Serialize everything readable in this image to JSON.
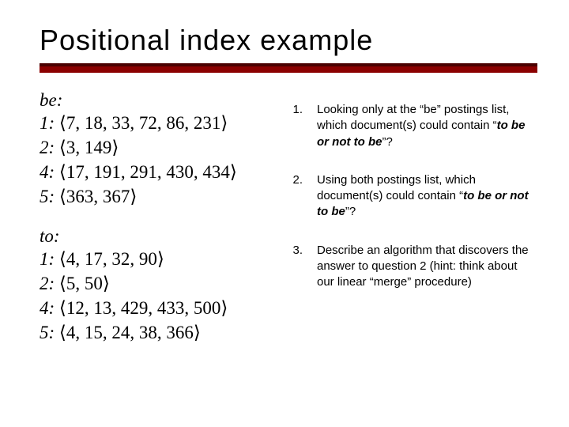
{
  "title": "Positional index example",
  "rule_color_top": "#4a0000",
  "rule_color_bottom": "#8b0000",
  "left": {
    "block1": {
      "term": "be",
      "p1": {
        "doc": "1",
        "list": "7, 18, 33, 72, 86, 231"
      },
      "p2": {
        "doc": "2",
        "list": "3, 149"
      },
      "p3": {
        "doc": "4",
        "list": "17, 191, 291, 430, 434"
      },
      "p4": {
        "doc": "5",
        "list": "363, 367"
      }
    },
    "block2": {
      "term": "to",
      "p1": {
        "doc": "1",
        "list": "4, 17, 32, 90"
      },
      "p2": {
        "doc": "2",
        "list": "5, 50"
      },
      "p3": {
        "doc": "4",
        "list": "12, 13, 429, 433, 500"
      },
      "p4": {
        "doc": "5",
        "list": "4, 15, 24, 38, 366"
      }
    }
  },
  "questions": {
    "q1": {
      "num": "1.",
      "pre": "Looking only at the “be” postings list, which document(s) could contain “",
      "phrase": "to be or not to be",
      "post": "”?"
    },
    "q2": {
      "num": "2.",
      "pre": "Using both postings list, which document(s) could contain “",
      "phrase": "to be or not to be",
      "post": "”?"
    },
    "q3": {
      "num": "3.",
      "text": "Describe an algorithm that discovers the answer to question 2 (hint: think about our linear “merge” procedure)"
    }
  },
  "angles": {
    "l": "⟨",
    "r": "⟩"
  }
}
